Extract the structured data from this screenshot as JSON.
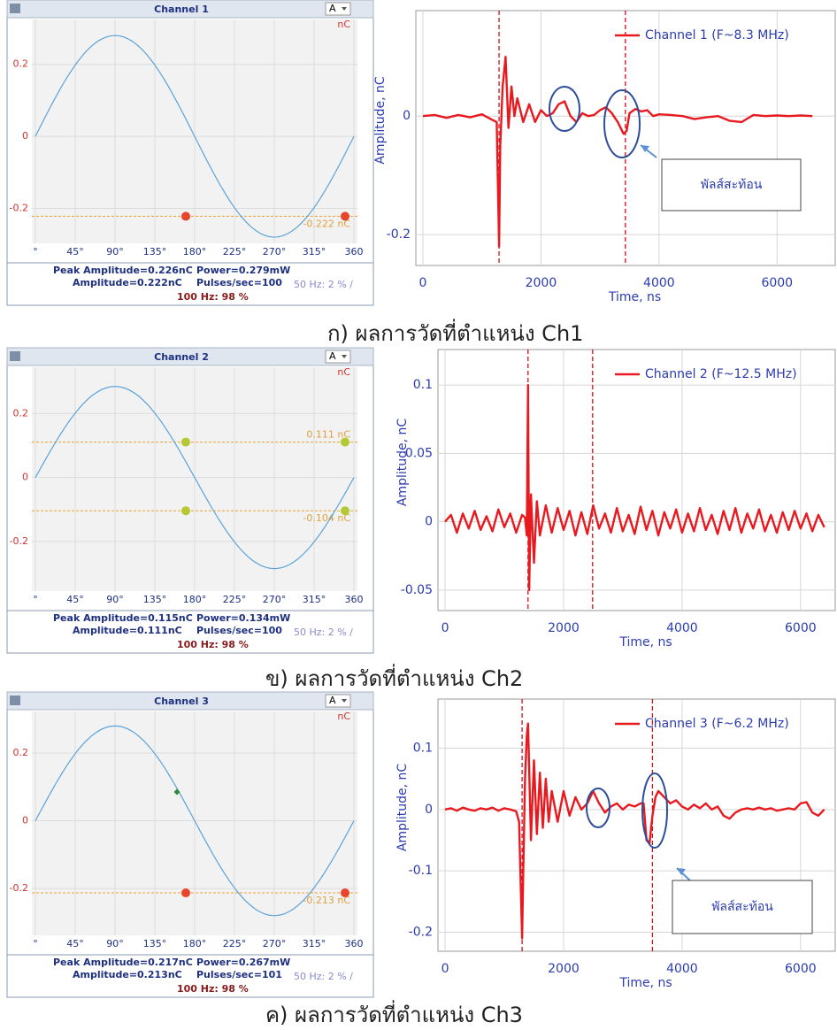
{
  "chart_data": [
    {
      "type": "scatter",
      "title": "Channel 1",
      "selector": "A",
      "unit": "nC",
      "xlim": [
        0,
        360
      ],
      "xticks": [
        {
          "value": 0,
          "label": "°"
        },
        {
          "value": 45,
          "label": "45°"
        },
        {
          "value": 90,
          "label": "90°"
        },
        {
          "value": 135,
          "label": "135°"
        },
        {
          "value": 180,
          "label": "180°"
        },
        {
          "value": 225,
          "label": "225°"
        },
        {
          "value": 270,
          "label": "270°"
        },
        {
          "value": 315,
          "label": "315°"
        },
        {
          "value": 360,
          "label": "360"
        }
      ],
      "ylim": [
        -0.28,
        0.305
      ],
      "yticks": [
        -0.2,
        0,
        0.2
      ],
      "grid": true,
      "sine": {
        "amplitude": 0.28,
        "color": "#5ba3d9"
      },
      "point_groups": [
        {
          "color": "#e8452c",
          "marker": "circle",
          "x": [
            170,
            350
          ],
          "values": [
            -0.222,
            -0.222
          ]
        }
      ],
      "thresholds": [
        {
          "value": -0.222,
          "label": "-0.222 nC"
        }
      ],
      "stats": {
        "peak": "Peak Amplitude=0.226nC",
        "power": "Power=0.279mW",
        "amplitude": "Amplitude=0.222nC",
        "pulses": "Pulses/sec=100",
        "hz50": "50 Hz: 2 % /",
        "hz100": "100 Hz: 98 %"
      }
    },
    {
      "type": "line",
      "xlabel": "Time, ns",
      "ylabel": "Amplitude, nC",
      "legend": "upper right",
      "grid": true,
      "xlim": [
        -120,
        7000
      ],
      "xticks": [
        0,
        2000,
        4000,
        6000
      ],
      "ylim": [
        -0.252,
        0.178
      ],
      "yticks": [
        -0.2,
        0
      ],
      "cursors": [
        1290,
        3430
      ],
      "annotation": "พัลส์สะท้อน",
      "series": [
        {
          "name": "Channel 1 (F~8.3 MHz)",
          "color": "#e8191f",
          "x": [
            0,
            200,
            400,
            600,
            800,
            1000,
            1150,
            1250,
            1290,
            1310,
            1350,
            1400,
            1450,
            1500,
            1550,
            1600,
            1700,
            1800,
            1900,
            2000,
            2100,
            2200,
            2300,
            2400,
            2500,
            2600,
            2700,
            2800,
            2900,
            3000,
            3100,
            3200,
            3300,
            3400,
            3450,
            3500,
            3600,
            3700,
            3800,
            3900,
            4000,
            4200,
            4400,
            4600,
            4800,
            5000,
            5200,
            5400,
            5600,
            5800,
            6000,
            6200,
            6400,
            6600
          ],
          "values": [
            0,
            0.002,
            -0.003,
            0.002,
            -0.002,
            0.003,
            -0.005,
            -0.01,
            -0.22,
            -0.05,
            0.05,
            0.1,
            -0.02,
            0.05,
            0.0,
            0.03,
            -0.01,
            0.02,
            -0.01,
            0.01,
            0.0,
            0.005,
            0.02,
            0.025,
            0.0,
            -0.01,
            0.005,
            0.0,
            0.002,
            0.01,
            0.015,
            0.005,
            -0.01,
            -0.03,
            -0.025,
            0.005,
            0.012,
            0.008,
            0.01,
            0.0,
            0.003,
            0.002,
            0.0,
            -0.005,
            -0.002,
            0.0,
            -0.008,
            -0.01,
            0.002,
            0.0,
            0.001,
            0.0,
            0.001,
            0.0
          ]
        }
      ]
    },
    {
      "type": "scatter",
      "title": "Channel 2",
      "selector": "A",
      "unit": "nC",
      "xlim": [
        0,
        360
      ],
      "xticks": [
        {
          "value": 0,
          "label": "°"
        },
        {
          "value": 45,
          "label": "45°"
        },
        {
          "value": 90,
          "label": "90°"
        },
        {
          "value": 135,
          "label": "135°"
        },
        {
          "value": 180,
          "label": "180°"
        },
        {
          "value": 225,
          "label": "225°"
        },
        {
          "value": 270,
          "label": "270°"
        },
        {
          "value": 315,
          "label": "315°"
        },
        {
          "value": 360,
          "label": "360"
        }
      ],
      "ylim": [
        -0.336,
        0.323
      ],
      "yticks": [
        -0.2,
        0,
        0.2
      ],
      "grid": true,
      "sine": {
        "amplitude": 0.285,
        "color": "#5ba3d9"
      },
      "point_groups": [
        {
          "color": "#b5c832",
          "marker": "circle",
          "x": [
            170,
            350,
            170,
            350
          ],
          "values": [
            0.111,
            0.111,
            -0.104,
            -0.104
          ]
        }
      ],
      "thresholds": [
        {
          "value": 0.111,
          "label": "0.111 nC"
        },
        {
          "value": -0.104,
          "label": "-0.104 nC"
        }
      ],
      "stats": {
        "peak": "Peak Amplitude=0.115nC",
        "power": "Power=0.134mW",
        "amplitude": "Amplitude=0.111nC",
        "pulses": "Pulses/sec=100",
        "hz50": "50 Hz: 2 % /",
        "hz100": "100 Hz: 98 %"
      }
    },
    {
      "type": "line",
      "xlabel": "Time, ns",
      "ylabel": "Amplitude, nC",
      "legend": "upper right",
      "grid": true,
      "xlim": [
        -120,
        6600
      ],
      "xticks": [
        0,
        2000,
        4000,
        6000
      ],
      "ylim": [
        -0.065,
        0.126
      ],
      "yticks": [
        -0.05,
        0,
        0.05,
        0.1
      ],
      "cursors": [
        1400,
        2490
      ],
      "series": [
        {
          "name": "Channel 2 (F~12.5 MHz)",
          "color": "#e8191f",
          "x": [
            0,
            100,
            200,
            300,
            400,
            500,
            600,
            700,
            800,
            900,
            1000,
            1100,
            1200,
            1300,
            1350,
            1380,
            1400,
            1420,
            1450,
            1500,
            1550,
            1600,
            1700,
            1800,
            1900,
            2000,
            2100,
            2200,
            2300,
            2400,
            2500,
            2600,
            2700,
            2800,
            2900,
            3000,
            3100,
            3200,
            3300,
            3400,
            3500,
            3600,
            3700,
            3800,
            3900,
            4000,
            4100,
            4200,
            4300,
            4400,
            4500,
            4600,
            4700,
            4800,
            4900,
            5000,
            5100,
            5200,
            5300,
            5400,
            5500,
            5600,
            5700,
            5800,
            5900,
            6000,
            6100,
            6200,
            6300,
            6400
          ],
          "values": [
            0,
            0.005,
            -0.008,
            0.006,
            -0.005,
            0.008,
            -0.006,
            0.004,
            -0.007,
            0.009,
            -0.004,
            0.006,
            -0.008,
            0.005,
            0.003,
            -0.01,
            0.1,
            -0.05,
            0.02,
            -0.03,
            0.015,
            -0.01,
            0.012,
            -0.008,
            0.01,
            -0.006,
            0.008,
            -0.01,
            0.007,
            -0.009,
            0.012,
            -0.005,
            0.006,
            -0.008,
            0.01,
            -0.007,
            0.005,
            -0.009,
            0.011,
            -0.006,
            0.008,
            -0.01,
            0.007,
            -0.005,
            0.009,
            -0.008,
            0.006,
            -0.007,
            0.01,
            -0.006,
            0.005,
            -0.009,
            0.008,
            -0.006,
            0.01,
            -0.008,
            0.006,
            -0.005,
            0.009,
            -0.007,
            0.005,
            -0.008,
            0.007,
            -0.006,
            0.008,
            -0.005,
            0.006,
            -0.007,
            0.005,
            -0.004
          ]
        }
      ]
    },
    {
      "type": "scatter",
      "title": "Channel 3",
      "selector": "A",
      "unit": "nC",
      "xlim": [
        0,
        360
      ],
      "xticks": [
        {
          "value": 0,
          "label": "°"
        },
        {
          "value": 45,
          "label": "45°"
        },
        {
          "value": 90,
          "label": "90°"
        },
        {
          "value": 135,
          "label": "135°"
        },
        {
          "value": 180,
          "label": "180°"
        },
        {
          "value": 225,
          "label": "225°"
        },
        {
          "value": 270,
          "label": "270°"
        },
        {
          "value": 315,
          "label": "315°"
        },
        {
          "value": 360,
          "label": "360"
        }
      ],
      "ylim": [
        -0.32,
        0.302
      ],
      "yticks": [
        -0.2,
        0,
        0.2
      ],
      "grid": true,
      "sine": {
        "amplitude": 0.28,
        "color": "#5ba3d9"
      },
      "point_groups": [
        {
          "color": "#e8452c",
          "marker": "circle",
          "x": [
            170,
            350
          ],
          "values": [
            -0.213,
            -0.213
          ]
        },
        {
          "color": "#2e8b3a",
          "marker": "diamond",
          "x": [
            160
          ],
          "values": [
            0.085
          ]
        }
      ],
      "thresholds": [
        {
          "value": -0.213,
          "label": "-0.213 nC"
        }
      ],
      "stats": {
        "peak": "Peak Amplitude=0.217nC",
        "power": "Power=0.267mW",
        "amplitude": "Amplitude=0.213nC",
        "pulses": "Pulses/sec=101",
        "hz50": "50 Hz: 2 % /",
        "hz100": "100 Hz: 98 %"
      }
    },
    {
      "type": "line",
      "xlabel": "Time, ns",
      "ylabel": "Amplitude, nC",
      "legend": "upper right",
      "grid": true,
      "xlim": [
        -120,
        6600
      ],
      "xticks": [
        0,
        2000,
        4000,
        6000
      ],
      "ylim": [
        -0.231,
        0.18
      ],
      "yticks": [
        -0.2,
        -0.1,
        0,
        0.1
      ],
      "cursors": [
        1300,
        3500
      ],
      "annotation": "พัลส์สะท้อน",
      "series": [
        {
          "name": "Channel 3 (F~6.2 MHz)",
          "color": "#e8191f",
          "x": [
            0,
            100,
            200,
            300,
            400,
            500,
            600,
            700,
            800,
            900,
            1000,
            1100,
            1200,
            1250,
            1300,
            1320,
            1350,
            1380,
            1400,
            1450,
            1500,
            1550,
            1600,
            1650,
            1700,
            1750,
            1800,
            1900,
            2000,
            2100,
            2200,
            2300,
            2400,
            2500,
            2600,
            2700,
            2800,
            2900,
            3000,
            3100,
            3200,
            3300,
            3350,
            3400,
            3450,
            3500,
            3550,
            3600,
            3700,
            3800,
            3900,
            4000,
            4100,
            4200,
            4300,
            4400,
            4500,
            4600,
            4700,
            4800,
            4900,
            5000,
            5100,
            5200,
            5300,
            5400,
            5500,
            5600,
            5700,
            5800,
            5900,
            6000,
            6100,
            6200,
            6300,
            6400
          ],
          "values": [
            0,
            0.002,
            -0.002,
            0.003,
            0,
            -0.002,
            0.002,
            0,
            0.003,
            -0.002,
            0.002,
            0,
            -0.003,
            -0.02,
            -0.21,
            -0.1,
            0.05,
            0.12,
            0.14,
            -0.05,
            0.08,
            -0.04,
            0.06,
            -0.03,
            0.05,
            -0.02,
            0.03,
            -0.02,
            0.03,
            -0.01,
            0.02,
            0.0,
            0.01,
            0.03,
            0.01,
            -0.005,
            0.005,
            0.01,
            0.0,
            0.008,
            0.005,
            0.01,
            0.01,
            -0.05,
            -0.055,
            -0.01,
            0.02,
            0.03,
            0.02,
            0.01,
            0.015,
            0.005,
            0.0,
            0.008,
            0.002,
            0.01,
            0.0,
            0.005,
            -0.01,
            -0.015,
            -0.005,
            0.0,
            0.002,
            0.0,
            0.003,
            0.0,
            0.002,
            -0.002,
            0.0,
            0.002,
            0.0,
            0.01,
            0.012,
            -0.005,
            -0.01,
            0.0
          ]
        }
      ]
    }
  ],
  "captions": [
    "ก) ผลการวัดที่ตำแหน่ง Ch1",
    "ข) ผลการวัดที่ตำแหน่ง Ch2",
    "ค) ผลการวัดที่ตำแหน่ง Ch3"
  ]
}
